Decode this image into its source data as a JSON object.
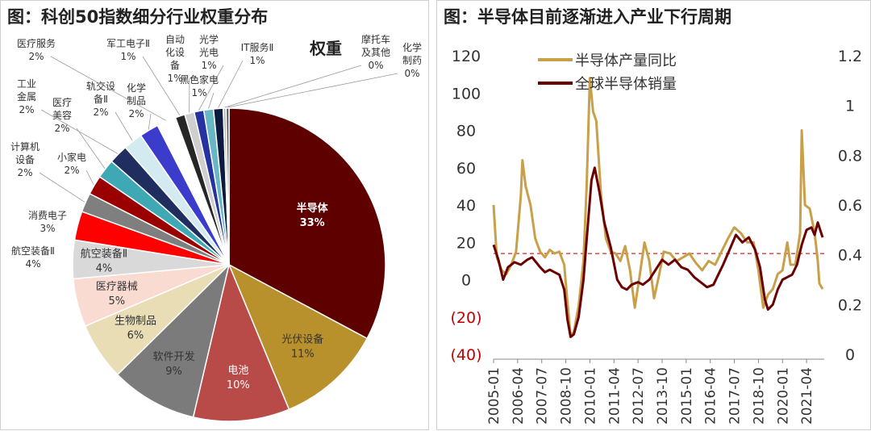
{
  "charts": [
    {
      "title": "图：科创50指数细分行业权重分布",
      "chart_data": {
        "type": "pie",
        "legend_title": "权重",
        "slices": [
          {
            "label": "半导体",
            "value": 33,
            "pct_label": "33%",
            "color": "#5e0000"
          },
          {
            "label": "光伏设备",
            "value": 11,
            "pct_label": "11%",
            "color": "#b8912c"
          },
          {
            "label": "电池",
            "value": 10,
            "pct_label": "10%",
            "color": "#b84a47"
          },
          {
            "label": "软件开发",
            "value": 9,
            "pct_label": "9%",
            "color": "#7b7b7b"
          },
          {
            "label": "生物制品",
            "value": 6,
            "pct_label": "6%",
            "color": "#e8ddb5"
          },
          {
            "label": "医疗器械",
            "value": 5,
            "pct_label": "5%",
            "color": "#fadbd2"
          },
          {
            "label": "航空装备Ⅱ",
            "value": 4,
            "pct_label": "4%",
            "color": "#d9d9d9"
          },
          {
            "label": "消费电子",
            "value": 3,
            "pct_label": "3%",
            "color": "#ff0000"
          },
          {
            "label": "计算机设备",
            "value": 2,
            "pct_label": "2%",
            "color": "#7f7f7f"
          },
          {
            "label": "小家电",
            "value": 2,
            "pct_label": "2%",
            "color": "#9b0000"
          },
          {
            "label": "医疗美容",
            "value": 2,
            "pct_label": "2%",
            "color": "#3fa8b5"
          },
          {
            "label": "工业金属",
            "value": 2,
            "pct_label": "2%",
            "color": "#1f2e5e"
          },
          {
            "label": "轨交设备Ⅱ",
            "value": 2,
            "pct_label": "2%",
            "color": "#d3eaf0"
          },
          {
            "label": "化学制品",
            "value": 2,
            "pct_label": "2%",
            "color": "#3b3bcc"
          },
          {
            "label": "医疗服务",
            "value": 2,
            "pct_label": "2%",
            "color": "#ffffff"
          },
          {
            "label": "军工电子Ⅱ",
            "value": 1,
            "pct_label": "1%",
            "color": "#262626"
          },
          {
            "label": "自动化设备",
            "value": 1,
            "pct_label": "1%",
            "color": "#cfcfcf"
          },
          {
            "label": "光学光电子",
            "value": 1,
            "pct_label": "1%",
            "color": "#2433a0"
          },
          {
            "label": "黑色家电",
            "value": 1,
            "pct_label": "1%",
            "color": "#68b7c4"
          },
          {
            "label": "IT服务Ⅱ",
            "value": 1,
            "pct_label": "1%",
            "color": "#0d1a40"
          },
          {
            "label": "摩托车及其他",
            "value": 0.3,
            "pct_label": "0%",
            "color": "#bbbbbb"
          },
          {
            "label": "化学制药",
            "value": 0.3,
            "pct_label": "0%",
            "color": "#555555"
          }
        ]
      }
    },
    {
      "title": "图：半导体目前逐渐进入产业下行周期",
      "chart_data": {
        "type": "line",
        "x_ticks": [
          "2005-01",
          "2006-04",
          "2007-07",
          "2008-10",
          "2010-01",
          "2011-04",
          "2012-07",
          "2013-10",
          "2015-01",
          "2016-04",
          "2017-07",
          "2018-10",
          "2020-01",
          "2021-04"
        ],
        "x_range": [
          "2005-01",
          "2022-03"
        ],
        "y_left": {
          "range": [
            -40,
            120
          ],
          "tick_values": [
            120,
            100,
            80,
            60,
            40,
            20,
            0,
            -20,
            -40
          ],
          "tick_labels": [
            "120",
            "100",
            "80",
            "60",
            "40",
            "20",
            "0",
            "(20)",
            "(40)"
          ]
        },
        "y_right": {
          "range": [
            0,
            1.2
          ],
          "tick_values": [
            1.2,
            1,
            0.8,
            0.6,
            0.4,
            0.2,
            0
          ],
          "tick_labels": [
            "1.2",
            "1",
            "0.8",
            "0.6",
            "0.4",
            "0.2",
            "0"
          ]
        },
        "reference_line": {
          "axis": "left",
          "value": 14,
          "color": "#e02020"
        },
        "series": [
          {
            "name": "半导体产量同比",
            "axis": "left",
            "color": "#c9a04a",
            "points": [
              [
                "2005-01",
                40
              ],
              [
                "2005-03",
                12
              ],
              [
                "2005-06",
                5
              ],
              [
                "2005-09",
                3
              ],
              [
                "2005-12",
                8
              ],
              [
                "2006-03",
                15
              ],
              [
                "2006-06",
                45
              ],
              [
                "2006-07",
                64
              ],
              [
                "2006-09",
                50
              ],
              [
                "2006-12",
                40
              ],
              [
                "2007-03",
                22
              ],
              [
                "2007-06",
                15
              ],
              [
                "2007-09",
                12
              ],
              [
                "2007-12",
                16
              ],
              [
                "2008-03",
                14
              ],
              [
                "2008-06",
                15
              ],
              [
                "2008-09",
                8
              ],
              [
                "2008-11",
                -12
              ],
              [
                "2009-01",
                -30
              ],
              [
                "2009-03",
                -28
              ],
              [
                "2009-06",
                -14
              ],
              [
                "2009-09",
                10
              ],
              [
                "2009-11",
                50
              ],
              [
                "2010-01",
                108
              ],
              [
                "2010-03",
                90
              ],
              [
                "2010-05",
                85
              ],
              [
                "2010-08",
                45
              ],
              [
                "2010-11",
                22
              ],
              [
                "2011-02",
                15
              ],
              [
                "2011-05",
                14
              ],
              [
                "2011-08",
                10
              ],
              [
                "2011-11",
                18
              ],
              [
                "2012-02",
                5
              ],
              [
                "2012-05",
                -15
              ],
              [
                "2012-08",
                2
              ],
              [
                "2012-11",
                20
              ],
              [
                "2013-02",
                10
              ],
              [
                "2013-05",
                -10
              ],
              [
                "2013-08",
                2
              ],
              [
                "2013-11",
                15
              ],
              [
                "2014-03",
                14
              ],
              [
                "2014-07",
                10
              ],
              [
                "2014-11",
                12
              ],
              [
                "2015-03",
                14
              ],
              [
                "2015-07",
                9
              ],
              [
                "2015-11",
                5
              ],
              [
                "2016-03",
                10
              ],
              [
                "2016-07",
                8
              ],
              [
                "2016-11",
                15
              ],
              [
                "2017-03",
                22
              ],
              [
                "2017-07",
                28
              ],
              [
                "2017-11",
                25
              ],
              [
                "2018-03",
                20
              ],
              [
                "2018-07",
                20
              ],
              [
                "2018-10",
                5
              ],
              [
                "2019-01",
                -15
              ],
              [
                "2019-04",
                -8
              ],
              [
                "2019-07",
                -5
              ],
              [
                "2019-10",
                3
              ],
              [
                "2020-01",
                5
              ],
              [
                "2020-04",
                20
              ],
              [
                "2020-06",
                8
              ],
              [
                "2020-09",
                8
              ],
              [
                "2020-12",
                25
              ],
              [
                "2021-01",
                80
              ],
              [
                "2021-03",
                40
              ],
              [
                "2021-06",
                38
              ],
              [
                "2021-09",
                25
              ],
              [
                "2021-11",
                10
              ],
              [
                "2021-12",
                -2
              ],
              [
                "2022-02",
                -5
              ]
            ]
          },
          {
            "name": "全球半导体销量",
            "axis": "right",
            "color": "#6b0000",
            "points": [
              [
                "2005-01",
                0.44
              ],
              [
                "2005-04",
                0.38
              ],
              [
                "2005-07",
                0.3
              ],
              [
                "2005-10",
                0.35
              ],
              [
                "2006-02",
                0.37
              ],
              [
                "2006-06",
                0.36
              ],
              [
                "2006-10",
                0.38
              ],
              [
                "2007-01",
                0.39
              ],
              [
                "2007-06",
                0.35
              ],
              [
                "2007-09",
                0.33
              ],
              [
                "2007-12",
                0.34
              ],
              [
                "2008-03",
                0.33
              ],
              [
                "2008-06",
                0.32
              ],
              [
                "2008-09",
                0.26
              ],
              [
                "2008-11",
                0.14
              ],
              [
                "2009-01",
                0.07
              ],
              [
                "2009-03",
                0.08
              ],
              [
                "2009-06",
                0.15
              ],
              [
                "2009-09",
                0.3
              ],
              [
                "2009-11",
                0.46
              ],
              [
                "2010-02",
                0.7
              ],
              [
                "2010-04",
                0.75
              ],
              [
                "2010-07",
                0.65
              ],
              [
                "2010-10",
                0.53
              ],
              [
                "2011-02",
                0.43
              ],
              [
                "2011-06",
                0.3
              ],
              [
                "2011-09",
                0.27
              ],
              [
                "2011-12",
                0.26
              ],
              [
                "2012-03",
                0.28
              ],
              [
                "2012-07",
                0.29
              ],
              [
                "2012-10",
                0.28
              ],
              [
                "2013-02",
                0.3
              ],
              [
                "2013-06",
                0.34
              ],
              [
                "2013-10",
                0.38
              ],
              [
                "2014-02",
                0.36
              ],
              [
                "2014-06",
                0.38
              ],
              [
                "2014-10",
                0.35
              ],
              [
                "2015-02",
                0.34
              ],
              [
                "2015-06",
                0.31
              ],
              [
                "2015-10",
                0.29
              ],
              [
                "2016-02",
                0.27
              ],
              [
                "2016-06",
                0.28
              ],
              [
                "2016-09",
                0.32
              ],
              [
                "2016-12",
                0.36
              ],
              [
                "2017-04",
                0.42
              ],
              [
                "2017-08",
                0.48
              ],
              [
                "2017-12",
                0.45
              ],
              [
                "2018-04",
                0.47
              ],
              [
                "2018-08",
                0.42
              ],
              [
                "2018-11",
                0.35
              ],
              [
                "2019-02",
                0.22
              ],
              [
                "2019-04",
                0.18
              ],
              [
                "2019-07",
                0.2
              ],
              [
                "2019-10",
                0.26
              ],
              [
                "2020-01",
                0.3
              ],
              [
                "2020-04",
                0.31
              ],
              [
                "2020-07",
                0.32
              ],
              [
                "2020-10",
                0.36
              ],
              [
                "2021-01",
                0.44
              ],
              [
                "2021-04",
                0.5
              ],
              [
                "2021-07",
                0.51
              ],
              [
                "2021-09",
                0.48
              ],
              [
                "2021-11",
                0.53
              ],
              [
                "2022-02",
                0.47
              ]
            ]
          }
        ]
      }
    }
  ]
}
